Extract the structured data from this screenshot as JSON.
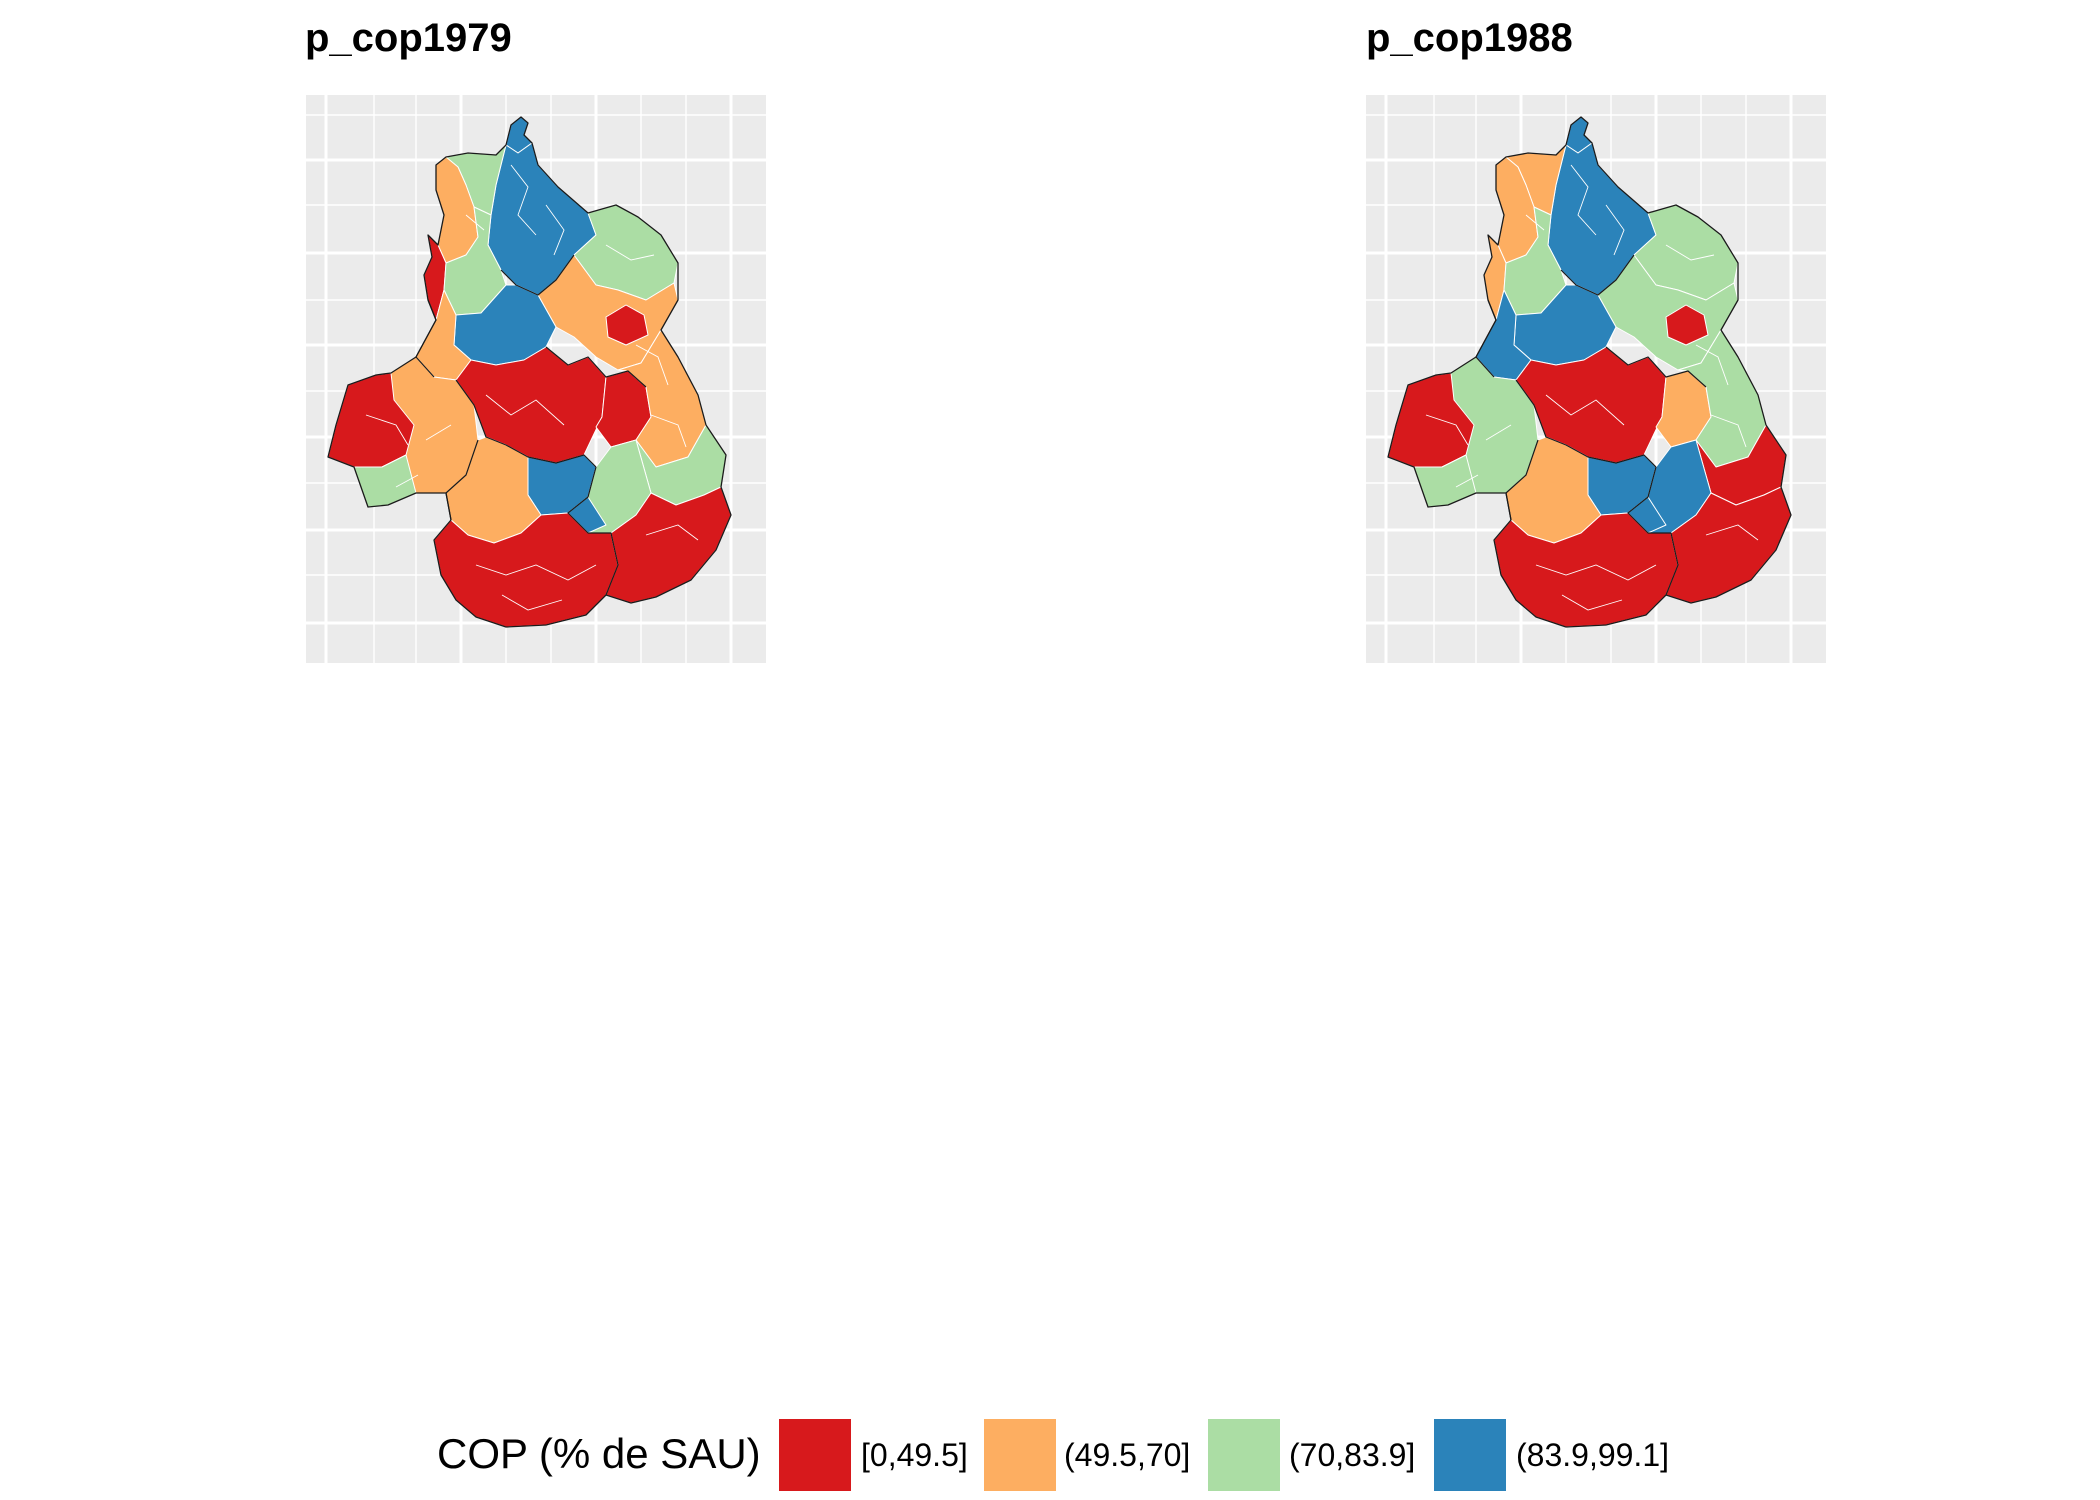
{
  "maps": [
    {
      "title": "p_cop1979",
      "regions": {
        "north_tip": "blue",
        "north_east": "blue",
        "north_west_strip": "green",
        "north_west_edge": "orange",
        "north_west_red": "red",
        "north_center_green": "green",
        "east_north": "green",
        "east_upper": "orange",
        "east_red_patch": "red",
        "center_blue": "blue",
        "center_orange": "orange",
        "west": "orange",
        "west_red": "red",
        "west_bottom_green": "green",
        "center_red": "red",
        "center_east_red": "red",
        "east_middle": "orange",
        "east_green": "green",
        "south_center_blue": "blue",
        "south_center_orange": "orange",
        "south_green": "green",
        "south_blue_small": "blue",
        "south": "red",
        "south_east": "red"
      }
    },
    {
      "title": "p_cop1988",
      "regions": {
        "north_tip": "blue",
        "north_east": "blue",
        "north_west_strip": "orange",
        "north_west_edge": "orange",
        "north_west_red": "orange",
        "north_center_green": "green",
        "east_north": "green",
        "east_upper": "green",
        "east_red_patch": "red",
        "center_blue": "blue",
        "center_orange": "blue",
        "west": "green",
        "west_red": "red",
        "west_bottom_green": "green",
        "center_red": "red",
        "center_east_red": "orange",
        "east_middle": "green",
        "east_green": "red",
        "south_center_blue": "blue",
        "south_center_orange": "orange",
        "south_green": "blue",
        "south_blue_small": "blue",
        "south": "red",
        "south_east": "red"
      }
    }
  ],
  "legend": {
    "title": "COP (% de SAU)",
    "items": [
      {
        "label": "[0,49.5]",
        "class": "red",
        "color": "#d7191c"
      },
      {
        "label": "(49.5,70]",
        "class": "orange",
        "color": "#fdae61"
      },
      {
        "label": "(70,83.9]",
        "class": "green",
        "color": "#abdda4"
      },
      {
        "label": "(83.9,99.1]",
        "class": "blue",
        "color": "#2b83ba"
      }
    ]
  },
  "colors": {
    "panel_background": "#ebebeb",
    "grid": "#ffffff",
    "region_border": "#ffffff",
    "department_border": "#1a1a1a"
  }
}
